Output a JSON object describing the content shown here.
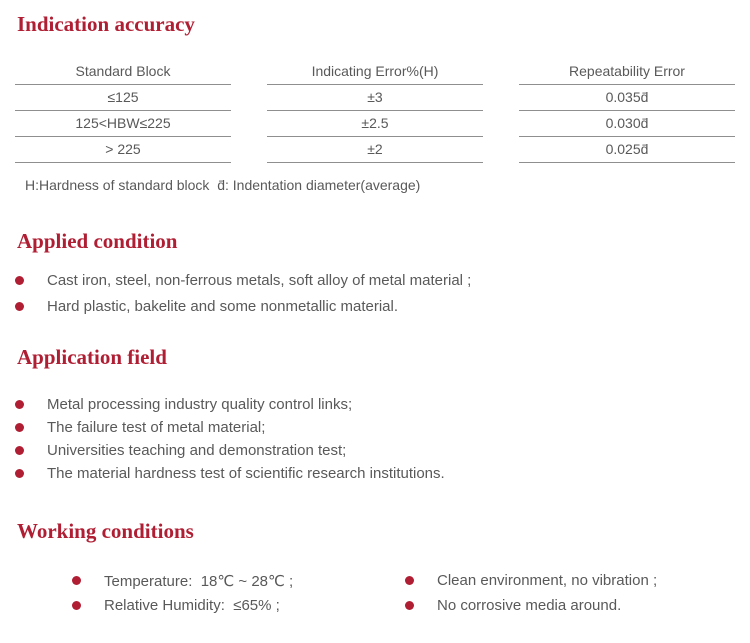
{
  "colors": {
    "accent_red": "#b01e33",
    "body_text": "#595959",
    "table_line": "#8f8f8f"
  },
  "indication": {
    "title": "Indication accuracy",
    "table": {
      "headers": [
        "Standard Block",
        "Indicating Error%(H)",
        "Repeatability Error"
      ],
      "rows": [
        [
          "≤125",
          "±3",
          "0.035d̄"
        ],
        [
          "125<HBW≤225",
          "±2.5",
          "0.030d̄"
        ],
        [
          "> 225",
          "±2",
          "0.025d̄"
        ]
      ]
    },
    "footnote": "H:Hardness of standard block  d̄: Indentation diameter(average)"
  },
  "applied": {
    "title": "Applied condition",
    "items": [
      "Cast iron, steel, non-ferrous metals, soft alloy of metal material ;",
      "Hard plastic, bakelite and some nonmetallic material."
    ]
  },
  "application": {
    "title": "Application field",
    "items": [
      "Metal processing industry quality control links;",
      "The failure test of metal material;",
      "Universities teaching and demonstration test;",
      "The material hardness test of scientific research institutions."
    ]
  },
  "working": {
    "title": "Working conditions",
    "left_items": [
      "Temperature:  18℃ ~ 28℃ ;",
      "Relative Humidity:  ≤65% ;"
    ],
    "right_items": [
      "Clean environment, no vibration ;",
      "No corrosive media around."
    ]
  }
}
